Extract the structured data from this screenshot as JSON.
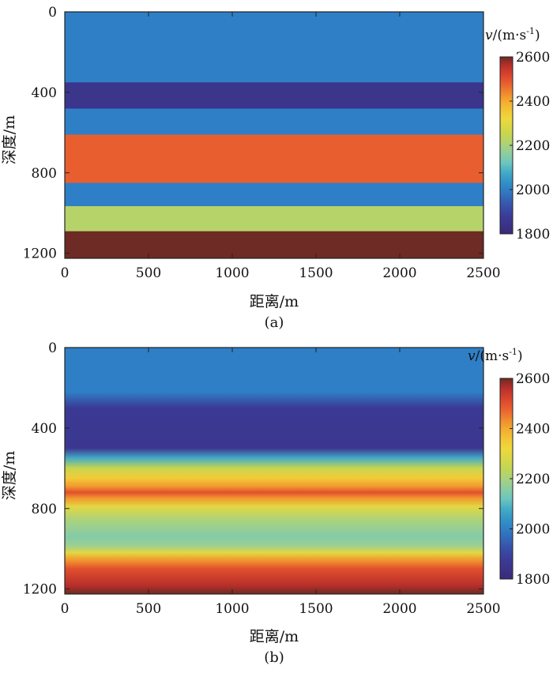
{
  "chart_data": [
    {
      "panel_label": "(a)",
      "type": "heatmap",
      "xlabel": "距离/m",
      "ylabel": "深度/m",
      "xlim": [
        0,
        2500
      ],
      "ylim": [
        0,
        1225
      ],
      "x_ticks": [
        0,
        500,
        1000,
        1500,
        2000,
        2500
      ],
      "y_ticks": [
        0,
        400,
        800,
        1200
      ],
      "colorbar": {
        "label_var": "v",
        "label_unit": "/(m·s",
        "label_exp": "-1",
        "label_close": ")",
        "min": 1800,
        "max": 2600,
        "ticks": [
          1800,
          2000,
          2200,
          2400,
          2600
        ]
      },
      "velocity_profile": [
        {
          "depth": 0,
          "velocity": 2000
        },
        {
          "depth": 350,
          "velocity": 2000
        },
        {
          "depth": 351,
          "velocity": 1850
        },
        {
          "depth": 480,
          "velocity": 1850
        },
        {
          "depth": 481,
          "velocity": 2000
        },
        {
          "depth": 610,
          "velocity": 2000
        },
        {
          "depth": 611,
          "velocity": 2480
        },
        {
          "depth": 850,
          "velocity": 2480
        },
        {
          "depth": 851,
          "velocity": 2000
        },
        {
          "depth": 965,
          "velocity": 2000
        },
        {
          "depth": 966,
          "velocity": 2220
        },
        {
          "depth": 1090,
          "velocity": 2220
        },
        {
          "depth": 1091,
          "velocity": 2620
        },
        {
          "depth": 1225,
          "velocity": 2620
        }
      ]
    },
    {
      "panel_label": "(b)",
      "type": "heatmap",
      "xlabel": "距离/m",
      "ylabel": "深度/m",
      "xlim": [
        0,
        2500
      ],
      "ylim": [
        0,
        1225
      ],
      "x_ticks": [
        0,
        500,
        1000,
        1500,
        2000,
        2500
      ],
      "y_ticks": [
        0,
        400,
        800,
        1200
      ],
      "colorbar": {
        "label_var": "v",
        "label_unit": "/(m·s",
        "label_exp": "-1",
        "label_close": ")",
        "min": 1800,
        "max": 2600,
        "ticks": [
          1800,
          2000,
          2200,
          2400,
          2600
        ]
      },
      "velocity_profile": [
        {
          "depth": 0,
          "velocity": 2000
        },
        {
          "depth": 220,
          "velocity": 2000
        },
        {
          "depth": 300,
          "velocity": 1870
        },
        {
          "depth": 500,
          "velocity": 1860
        },
        {
          "depth": 550,
          "velocity": 2080
        },
        {
          "depth": 600,
          "velocity": 2250
        },
        {
          "depth": 650,
          "velocity": 2350
        },
        {
          "depth": 690,
          "velocity": 2420
        },
        {
          "depth": 720,
          "velocity": 2500
        },
        {
          "depth": 750,
          "velocity": 2420
        },
        {
          "depth": 790,
          "velocity": 2300
        },
        {
          "depth": 860,
          "velocity": 2200
        },
        {
          "depth": 940,
          "velocity": 2150
        },
        {
          "depth": 985,
          "velocity": 2180
        },
        {
          "depth": 1020,
          "velocity": 2300
        },
        {
          "depth": 1055,
          "velocity": 2420
        },
        {
          "depth": 1100,
          "velocity": 2500
        },
        {
          "depth": 1180,
          "velocity": 2560
        },
        {
          "depth": 1225,
          "velocity": 2620
        }
      ]
    }
  ]
}
